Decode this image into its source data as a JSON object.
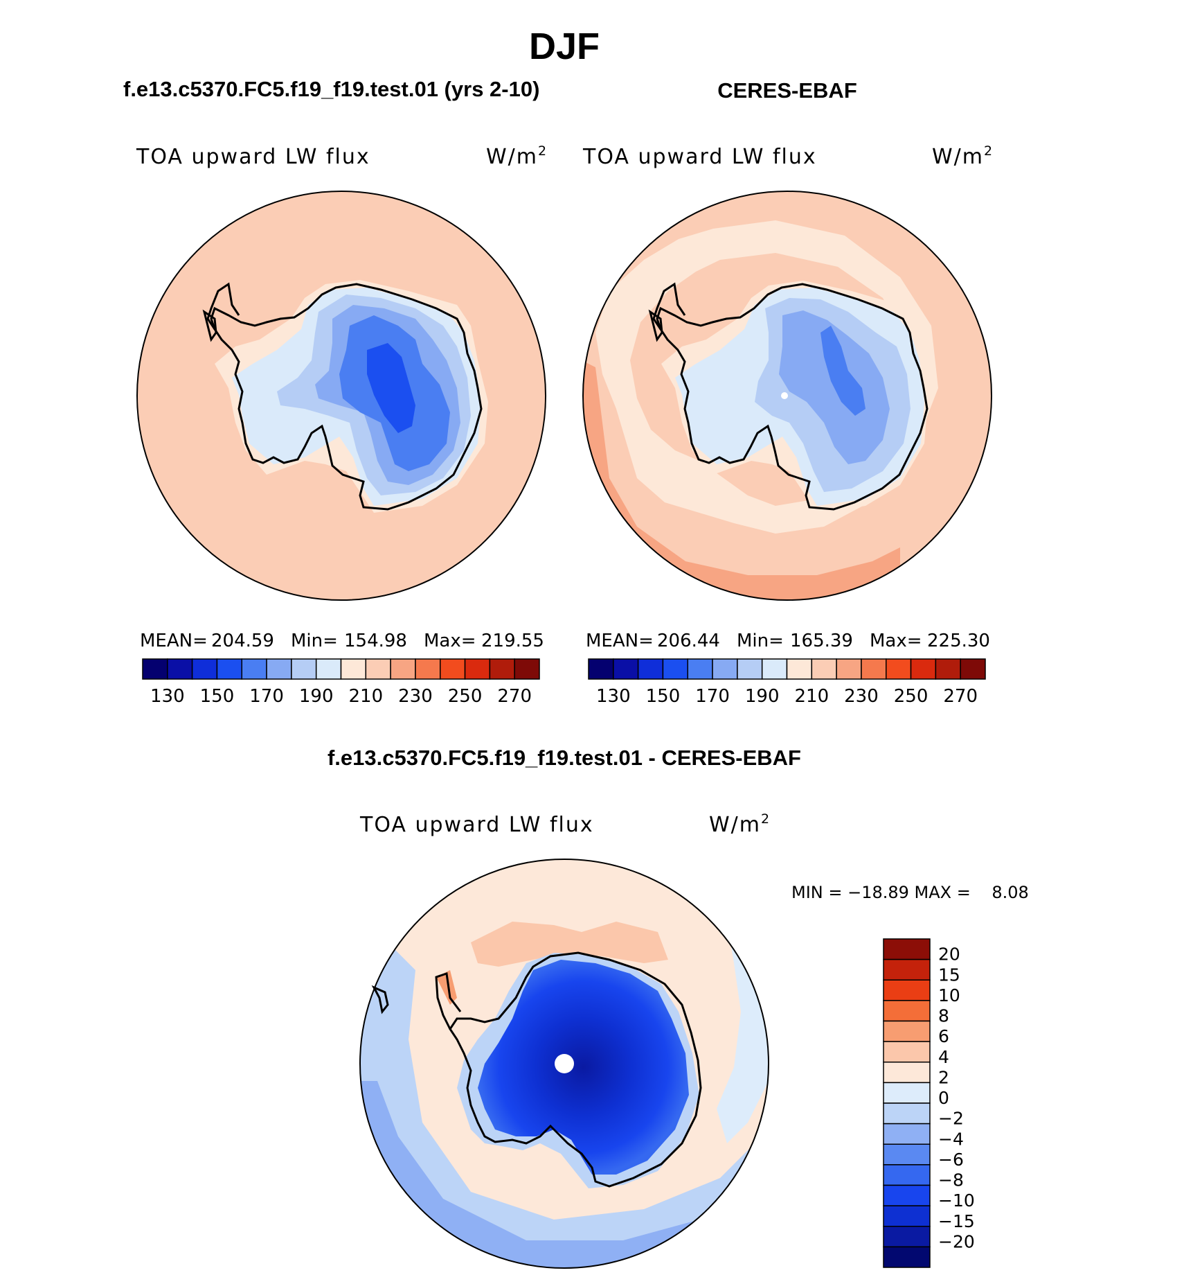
{
  "page_title": "DJF",
  "colors": {
    "seq_14": [
      "#04006f",
      "#0a0fa6",
      "#0f2ed9",
      "#1b4ff0",
      "#4a7ef2",
      "#87aaf3",
      "#b5cdf5",
      "#daeafa",
      "#fde8d8",
      "#fbcdb5",
      "#f7a583",
      "#f5794d",
      "#f24c1e",
      "#da2a0e",
      "#b01c0b",
      "#7e0a07"
    ],
    "diff_16": [
      "#020870",
      "#0a1aa2",
      "#0e30d2",
      "#1845ee",
      "#3568f0",
      "#5a89f2",
      "#8fb0f4",
      "#bcd4f7",
      "#ddecfb",
      "#fde8d9",
      "#fbc7ab",
      "#f79d71",
      "#f46e38",
      "#ea3e14",
      "#c4220b",
      "#8c0e07"
    ]
  },
  "chart_data": [
    {
      "type": "heatmap",
      "projection": "south-polar-stereographic",
      "title": "f.e13.c5370.FC5.f19_f19.test.01 (yrs 2-10)",
      "variable": "TOA upward LW flux",
      "units_base": "W/m",
      "units_exp": "2",
      "stats": {
        "mean": "204.59",
        "min": "154.98",
        "max": "219.55"
      },
      "stats_labels": {
        "mean": "MEAN=",
        "min": "Min=",
        "max": "Max="
      },
      "contour_levels": [
        130,
        140,
        150,
        160,
        170,
        180,
        190,
        200,
        210,
        220,
        230,
        240,
        250,
        260,
        270
      ],
      "colorbar_tick_labels": [
        "130",
        "150",
        "170",
        "190",
        "210",
        "230",
        "250",
        "270"
      ]
    },
    {
      "type": "heatmap",
      "projection": "south-polar-stereographic",
      "title": "CERES-EBAF",
      "variable": "TOA upward LW flux",
      "units_base": "W/m",
      "units_exp": "2",
      "stats": {
        "mean": "206.44",
        "min": "165.39",
        "max": "225.30"
      },
      "stats_labels": {
        "mean": "MEAN=",
        "min": "Min=",
        "max": "Max="
      },
      "contour_levels": [
        130,
        140,
        150,
        160,
        170,
        180,
        190,
        200,
        210,
        220,
        230,
        240,
        250,
        260,
        270
      ],
      "colorbar_tick_labels": [
        "130",
        "150",
        "170",
        "190",
        "210",
        "230",
        "250",
        "270"
      ]
    },
    {
      "type": "heatmap",
      "projection": "south-polar-stereographic",
      "title": "f.e13.c5370.FC5.f19_f19.test.01 - CERES-EBAF",
      "variable": "TOA upward LW flux",
      "units_base": "W/m",
      "units_exp": "2",
      "stats_text": "MIN = −18.89 MAX =    8.08",
      "contour_levels": [
        -20,
        -15,
        -10,
        -8,
        -6,
        -4,
        -2,
        0,
        2,
        4,
        6,
        8,
        10,
        15,
        20
      ],
      "colorbar_tick_labels": [
        "20",
        "15",
        "10",
        "8",
        "6",
        "4",
        "2",
        "0",
        "−2",
        "−4",
        "−6",
        "−8",
        "−10",
        "−15",
        "−20"
      ]
    }
  ]
}
